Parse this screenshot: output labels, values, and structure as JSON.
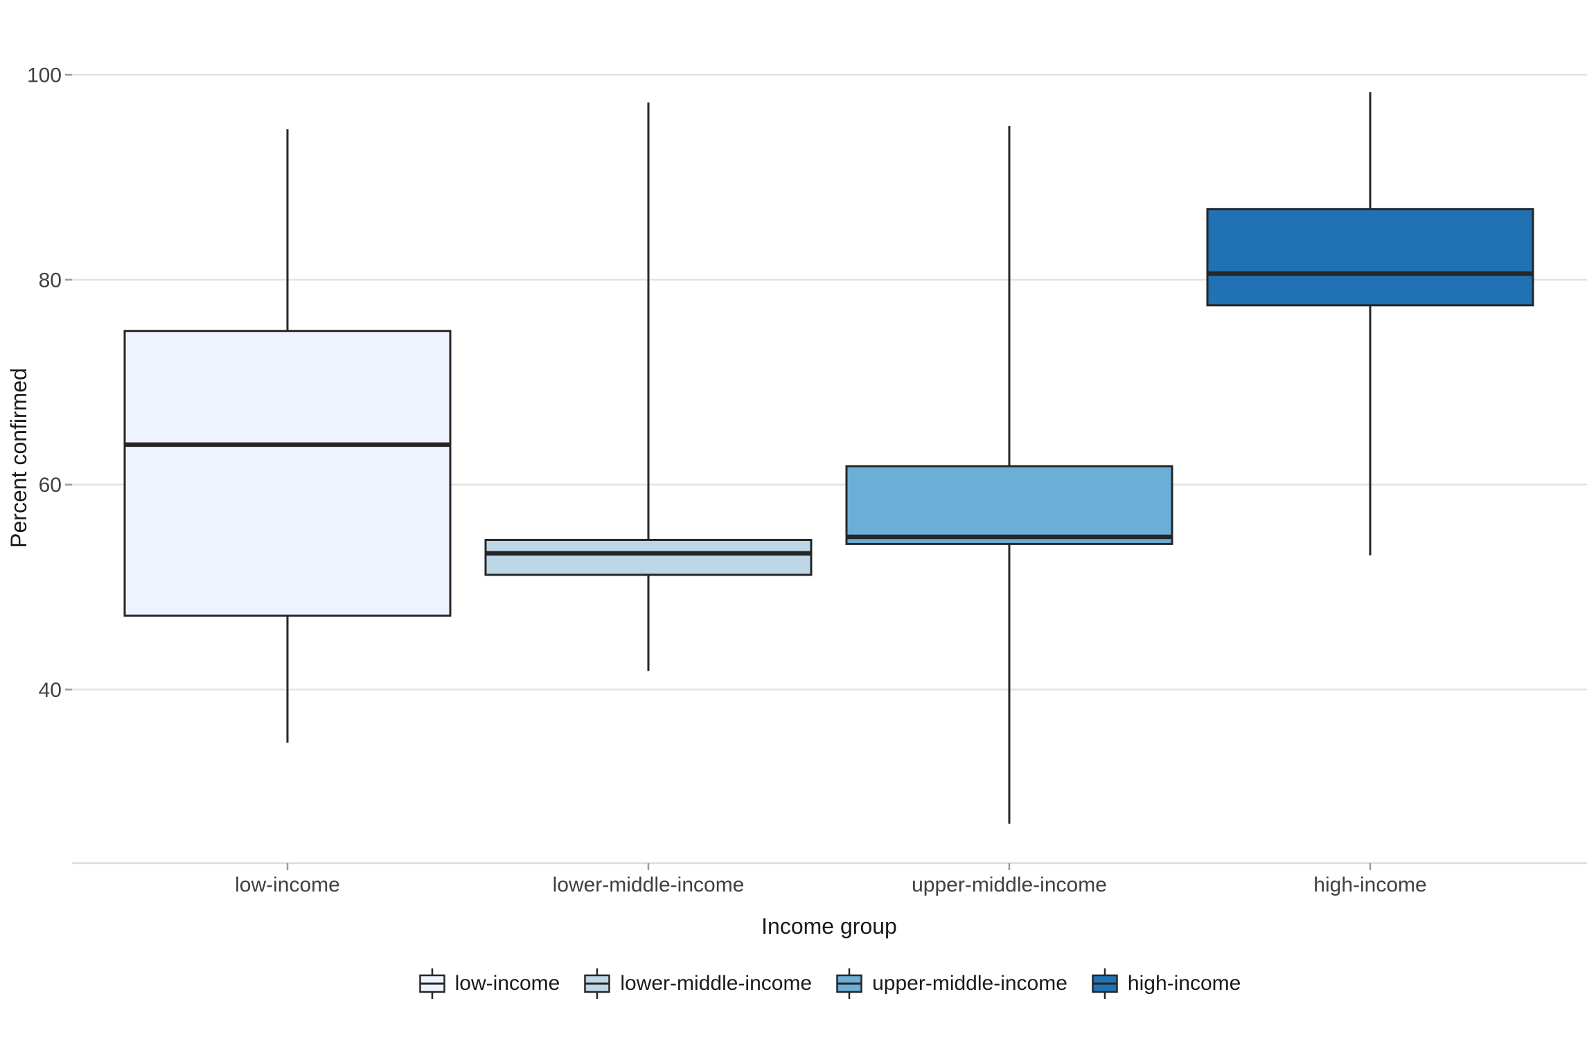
{
  "figure": {
    "background": "#FFFFFF",
    "gridline_color": "#E2E2E2",
    "axis_line_color": "#DCDCDC",
    "tick_color": "#9A9A9A",
    "tick_label_color": "#404040",
    "axis_title_color": "#1A1A1A",
    "box_stroke_color": "#262626"
  },
  "chart_data": {
    "type": "boxplot",
    "title": "",
    "xlabel": "Income group",
    "ylabel": "Percent confirmed",
    "categories": [
      "low-income",
      "lower-middle-income",
      "upper-middle-income",
      "high-income"
    ],
    "y_ticks": [
      40,
      60,
      80,
      100
    ],
    "y_tick_labels": [
      "40",
      "60",
      "80",
      "100"
    ],
    "ylim": [
      23,
      104.5
    ],
    "grid": "horizontal-only",
    "legend_position": "bottom",
    "series": [
      {
        "name": "low-income",
        "fill": "#EFF3FF",
        "whisker_low": 34.8,
        "q1": 47.2,
        "median": 63.9,
        "q3": 75.0,
        "whisker_high": 94.7
      },
      {
        "name": "lower-middle-income",
        "fill": "#BDD7E7",
        "whisker_low": 41.8,
        "q1": 51.2,
        "median": 53.3,
        "q3": 54.6,
        "whisker_high": 97.3
      },
      {
        "name": "upper-middle-income",
        "fill": "#6BAED6",
        "whisker_low": 26.9,
        "q1": 54.2,
        "median": 54.9,
        "q3": 61.8,
        "whisker_high": 95.0
      },
      {
        "name": "high-income",
        "fill": "#2171B5",
        "whisker_low": 53.1,
        "q1": 77.5,
        "median": 80.6,
        "q3": 86.9,
        "whisker_high": 98.3
      }
    ],
    "legend_items": [
      {
        "label": "low-income",
        "fill": "#EFF3FF"
      },
      {
        "label": "lower-middle-income",
        "fill": "#BDD7E7"
      },
      {
        "label": "upper-middle-income",
        "fill": "#6BAED6"
      },
      {
        "label": "high-income",
        "fill": "#2171B5"
      }
    ]
  }
}
